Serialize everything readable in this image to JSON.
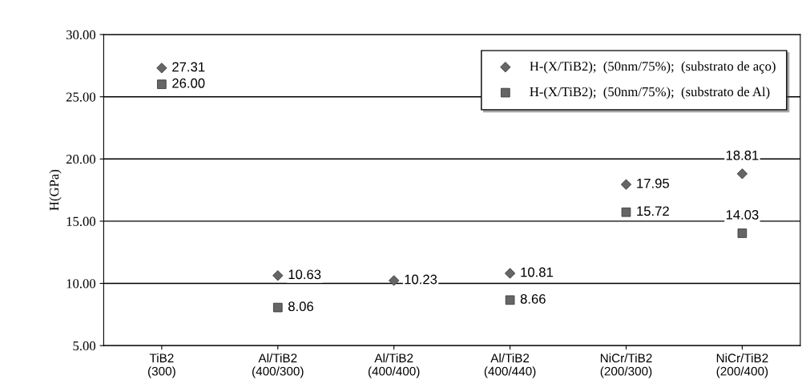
{
  "chart_data": {
    "type": "scatter",
    "ylabel": "H(GPa)",
    "categories": [
      "TiB2\n(300)",
      "Al/TiB2\n(400/300)",
      "Al/TiB2\n(400/400)",
      "Al/TiB2\n(400/440)",
      "NiCr/TiB2\n(200/300)",
      "NiCr/TiB2\n(200/400)"
    ],
    "series": [
      {
        "name": "H-(X/TiB2);  (50nm/75%);  (substrato de aço)",
        "color": "#666666",
        "marker": "diamond",
        "values": [
          27.31,
          10.63,
          10.23,
          10.81,
          17.95,
          18.81
        ],
        "value_labels": [
          "27.31",
          "10.63",
          "10.23",
          "10.81",
          "17.95",
          "18.81"
        ]
      },
      {
        "name": "H-(X/TiB2);  (50nm/75%);  (substrato de Al)",
        "color": "#666666",
        "marker": "square",
        "values": [
          26.0,
          8.06,
          null,
          8.66,
          15.72,
          14.03
        ],
        "value_labels": [
          "26.00",
          "8.06",
          null,
          "8.66",
          "15.72",
          "14.03"
        ]
      }
    ],
    "ylim": [
      5,
      30
    ],
    "yticks": [
      {
        "value": 5,
        "label": "5.00"
      },
      {
        "value": 10,
        "label": "10.00"
      },
      {
        "value": 15,
        "label": "15.00"
      },
      {
        "value": 20,
        "label": "20.00"
      },
      {
        "value": 25,
        "label": "25.00"
      },
      {
        "value": 30,
        "label": "30.00"
      }
    ],
    "grid": "y",
    "legend": "top right"
  }
}
